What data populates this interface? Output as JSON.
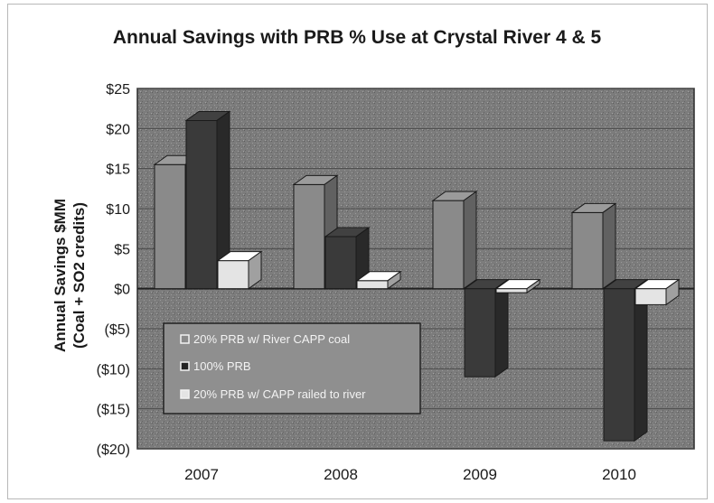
{
  "chart_data": {
    "type": "bar",
    "title": "Annual Savings with PRB % Use at Crystal River 4 & 5",
    "ylabel_line1": "Annual Savings $MM",
    "ylabel_line2": "(Coal + SO2 credits)",
    "xlabel": "",
    "categories": [
      "2007",
      "2008",
      "2009",
      "2010"
    ],
    "yticks": [
      "$25",
      "$20",
      "$15",
      "$10",
      "$5",
      "$0",
      "($5)",
      "($10)",
      "($15)",
      "($20)"
    ],
    "ytick_values": [
      25,
      20,
      15,
      10,
      5,
      0,
      -5,
      -10,
      -15,
      -20
    ],
    "ylim": [
      -20,
      25
    ],
    "series": [
      {
        "name": "20% PRB w/ River CAPP coal",
        "values": [
          15.5,
          13,
          11,
          9.5
        ],
        "color": "#8a8a8a"
      },
      {
        "name": "100% PRB",
        "values": [
          21,
          6.5,
          -11,
          -19
        ],
        "color": "#3a3a3a"
      },
      {
        "name": "20% PRB w/ CAPP railed to river",
        "values": [
          3.5,
          1,
          -0.5,
          -2
        ],
        "color": "#e4e4e4"
      }
    ],
    "legend_position": "bottom-left inside plot",
    "grid": true
  }
}
